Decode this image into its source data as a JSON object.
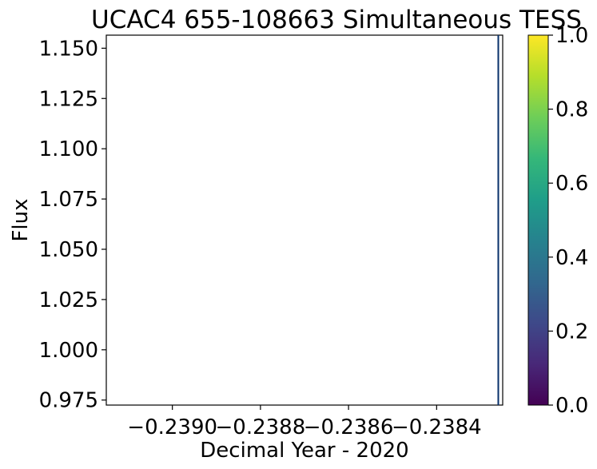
{
  "chart_data": {
    "type": "scatter",
    "title": "UCAC4 655-108663 Simultaneous TESS",
    "xlabel": "Decimal Year - 2020",
    "ylabel": "Flux",
    "xlim": [
      -0.23915,
      -0.23825
    ],
    "ylim": [
      0.9725,
      1.1565
    ],
    "x_ticks": [
      -0.239,
      -0.2388,
      -0.2386,
      -0.2384
    ],
    "x_tick_labels": [
      "−0.2390",
      "−0.2388",
      "−0.2386",
      "−0.2384"
    ],
    "y_ticks": [
      0.975,
      1.0,
      1.025,
      1.05,
      1.075,
      1.1,
      1.125,
      1.15
    ],
    "y_tick_labels": [
      "0.975",
      "1.000",
      "1.025",
      "1.050",
      "1.075",
      "1.100",
      "1.125",
      "1.150"
    ],
    "grid": false,
    "colorbar": {
      "colormap": "viridis",
      "range": [
        0.0,
        1.0
      ],
      "ticks": [
        0.0,
        0.2,
        0.4,
        0.6,
        0.8,
        1.0
      ],
      "tick_labels": [
        "0.0",
        "0.2",
        "0.4",
        "0.6",
        "0.8",
        "1.0"
      ],
      "colors": [
        "#440154",
        "#482878",
        "#3e4989",
        "#31688e",
        "#26828e",
        "#1f9e89",
        "#35b779",
        "#6ece58",
        "#b5de2b",
        "#fde725"
      ]
    },
    "series": [
      {
        "values": [],
        "color": "#08306b"
      }
    ],
    "vertical_line_x": -0.23826
  }
}
